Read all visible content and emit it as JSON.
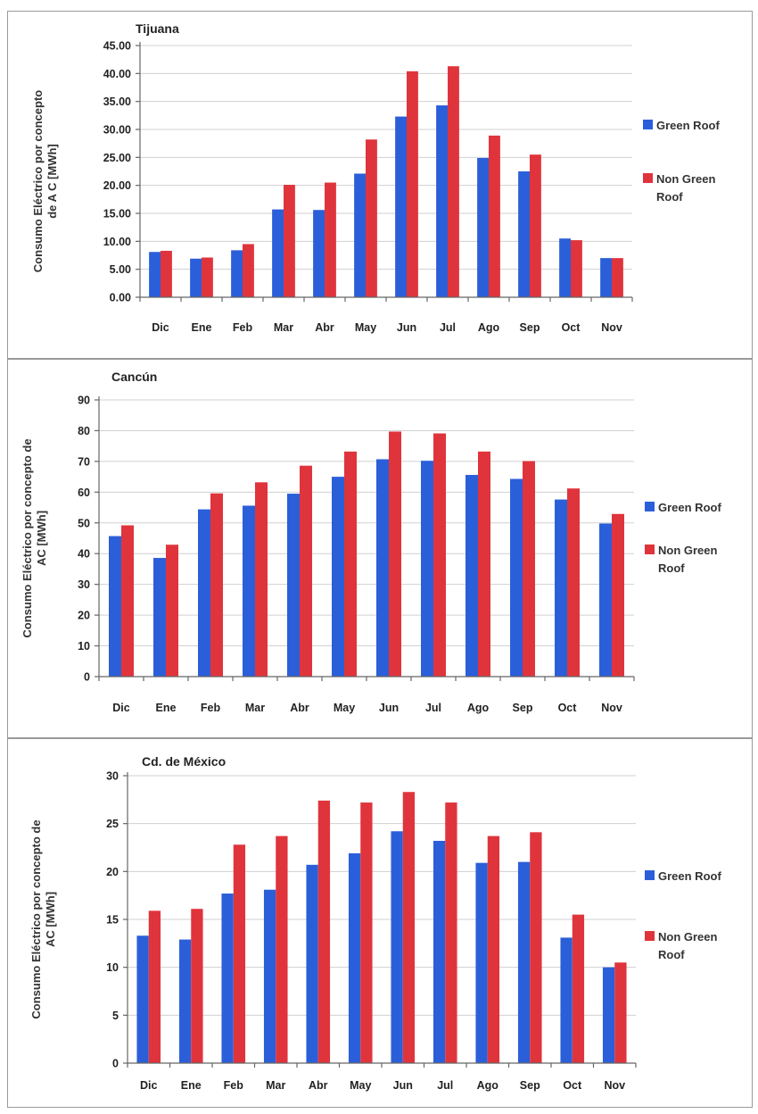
{
  "colors": {
    "green_roof": "#2b5fd9",
    "non_green_roof": "#e0343c"
  },
  "chart_data": [
    {
      "type": "bar",
      "title": "Tijuana",
      "ylabel_lines": [
        "Consumo Eléctrico por concepto",
        "de A C [MWh]"
      ],
      "categories": [
        "Dic",
        "Ene",
        "Feb",
        "Mar",
        "Abr",
        "May",
        "Jun",
        "Jul",
        "Ago",
        "Sep",
        "Oct",
        "Nov"
      ],
      "yticks": [
        "0.00",
        "5.00",
        "10.00",
        "15.00",
        "20.00",
        "25.00",
        "30.00",
        "35.00",
        "40.00",
        "45.00"
      ],
      "ylim": [
        0,
        45
      ],
      "grid": true,
      "legend_position": "right",
      "series": [
        {
          "name": "Green Roof",
          "legend_lines": [
            "Green Roof"
          ],
          "values": [
            8.1,
            6.9,
            8.4,
            15.7,
            15.6,
            22.1,
            32.3,
            34.3,
            24.9,
            22.5,
            10.5,
            7.0
          ]
        },
        {
          "name": "Non Green Roof",
          "legend_lines": [
            "Non Green",
            "Roof"
          ],
          "values": [
            8.3,
            7.1,
            9.5,
            20.1,
            20.5,
            28.2,
            40.4,
            41.3,
            28.9,
            25.5,
            10.2,
            7.0
          ]
        }
      ]
    },
    {
      "type": "bar",
      "title": "Cancún",
      "ylabel_lines": [
        "Consumo Eléctrico por concepto de",
        "AC [MWh]"
      ],
      "categories": [
        "Dic",
        "Ene",
        "Feb",
        "Mar",
        "Abr",
        "May",
        "Jun",
        "Jul",
        "Ago",
        "Sep",
        "Oct",
        "Nov"
      ],
      "yticks": [
        "0",
        "10",
        "20",
        "30",
        "40",
        "50",
        "60",
        "70",
        "80",
        "90"
      ],
      "ylim": [
        0,
        90
      ],
      "grid": true,
      "legend_position": "right",
      "series": [
        {
          "name": "Green Roof",
          "legend_lines": [
            "Green Roof"
          ],
          "values": [
            45.7,
            38.6,
            54.4,
            55.6,
            59.5,
            65.0,
            70.7,
            70.2,
            65.6,
            64.3,
            57.6,
            49.8
          ]
        },
        {
          "name": "Non Green Roof",
          "legend_lines": [
            "Non Green",
            "Roof"
          ],
          "values": [
            49.2,
            42.9,
            59.6,
            63.2,
            68.6,
            73.2,
            79.7,
            79.1,
            73.2,
            70.1,
            61.2,
            52.9
          ]
        }
      ]
    },
    {
      "type": "bar",
      "title": "Cd. de México",
      "ylabel_lines": [
        "Consumo Eléctrico por concepto de",
        "AC [MWh]"
      ],
      "categories": [
        "Dic",
        "Ene",
        "Feb",
        "Mar",
        "Abr",
        "May",
        "Jun",
        "Jul",
        "Ago",
        "Sep",
        "Oct",
        "Nov"
      ],
      "yticks": [
        "0",
        "5",
        "10",
        "15",
        "20",
        "25",
        "30"
      ],
      "ylim": [
        0,
        30
      ],
      "grid": true,
      "legend_position": "right",
      "series": [
        {
          "name": "Green Roof",
          "legend_lines": [
            "Green Roof"
          ],
          "values": [
            13.3,
            12.9,
            17.7,
            18.1,
            20.7,
            21.9,
            24.2,
            23.2,
            20.9,
            21.0,
            13.1,
            10.0
          ]
        },
        {
          "name": "Non Green Roof",
          "legend_lines": [
            "Non Green",
            "Roof"
          ],
          "values": [
            15.9,
            16.1,
            22.8,
            23.7,
            27.4,
            27.2,
            28.3,
            27.2,
            23.7,
            24.1,
            15.5,
            10.5
          ]
        }
      ]
    }
  ]
}
